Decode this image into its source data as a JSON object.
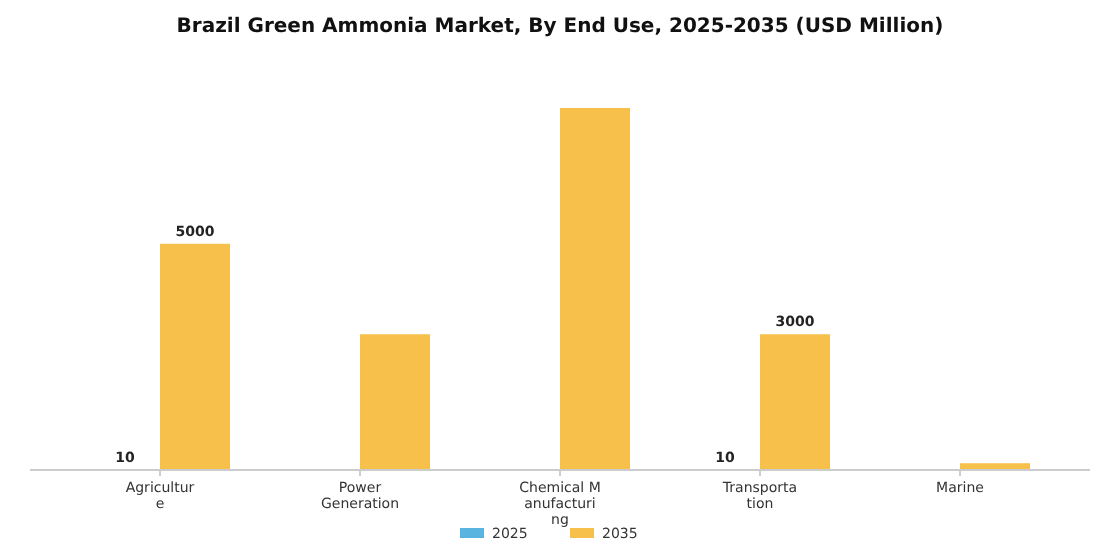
{
  "chart_data": {
    "type": "bar",
    "title": "Brazil Green Ammonia Market, By End Use, 2025-2035 (USD Million)",
    "categories": [
      "Agriculture",
      "Power Generation",
      "Chemical Manufacturing",
      "Transportation",
      "Marine"
    ],
    "series": [
      {
        "name": "2025",
        "color": "#5ab4e0",
        "values": [
          10,
          null,
          null,
          10,
          null
        ],
        "value_labels": [
          "10",
          null,
          null,
          "10",
          null
        ]
      },
      {
        "name": "2035",
        "color": "#f7c04a",
        "values": [
          5000,
          3000,
          8000,
          3000,
          150
        ],
        "value_labels": [
          "5000",
          null,
          null,
          "3000",
          null
        ]
      }
    ],
    "legend": "bottom",
    "grid": false
  }
}
